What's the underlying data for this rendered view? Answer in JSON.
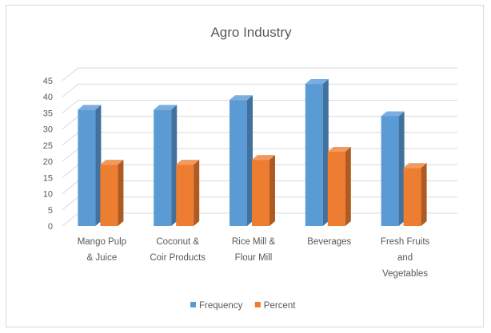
{
  "chart_data": {
    "type": "bar",
    "title": "Agro Industry",
    "categories": [
      [
        "Mango Pulp",
        "& Juice"
      ],
      [
        "Coconut &",
        "Coir Products"
      ],
      [
        "Rice Mill &",
        "Flour Mill"
      ],
      [
        "Beverages"
      ],
      [
        "Fresh Fruits",
        "and",
        "Vegetables"
      ]
    ],
    "series": [
      {
        "name": "Frequency",
        "values": [
          36,
          36,
          39,
          44,
          34
        ],
        "color": "#5B9BD5",
        "side": "#41719C",
        "top": "#7BAEDE"
      },
      {
        "name": "Percent",
        "values": [
          19,
          19,
          20.5,
          23,
          18
        ],
        "color": "#ED7D31",
        "side": "#AE5A21",
        "top": "#F19A5E"
      }
    ],
    "ylim": [
      0,
      45
    ],
    "yticks": [
      "0",
      "5",
      "10",
      "15",
      "20",
      "25",
      "30",
      "35",
      "40",
      "45"
    ],
    "grid": true,
    "legend": "bottom",
    "style": "3d-clustered-column"
  }
}
